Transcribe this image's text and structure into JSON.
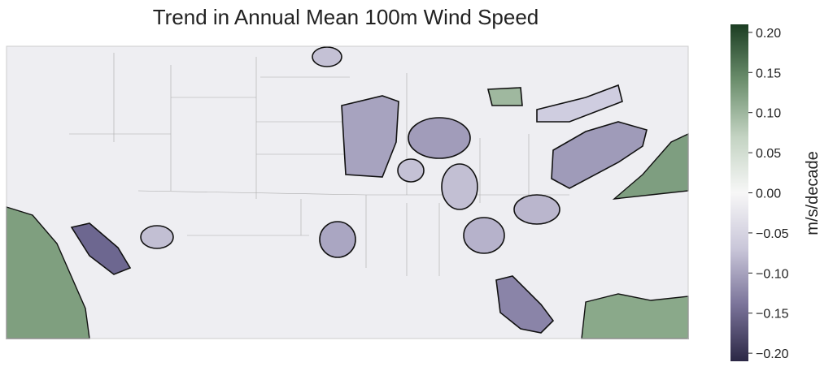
{
  "title": "Trend in Annual Mean 100m Wind Speed",
  "colorbar": {
    "label": "m/s/decade",
    "lim": [
      -0.21,
      0.21
    ],
    "ticks": [
      {
        "value": 0.2,
        "label": "0.20"
      },
      {
        "value": 0.15,
        "label": "0.15"
      },
      {
        "value": 0.1,
        "label": "0.10"
      },
      {
        "value": 0.05,
        "label": "0.05"
      },
      {
        "value": 0,
        "label": "0.00"
      },
      {
        "value": -0.05,
        "label": "−0.05"
      },
      {
        "value": -0.1,
        "label": "−0.10"
      },
      {
        "value": -0.15,
        "label": "−0.15"
      },
      {
        "value": -0.2,
        "label": "−0.20"
      }
    ],
    "colors": [
      "#2b2745",
      "#7a7399",
      "#c9c6d9",
      "#f7f7f7",
      "#c3d3c2",
      "#6c8f6d",
      "#1b3d22"
    ]
  }
}
